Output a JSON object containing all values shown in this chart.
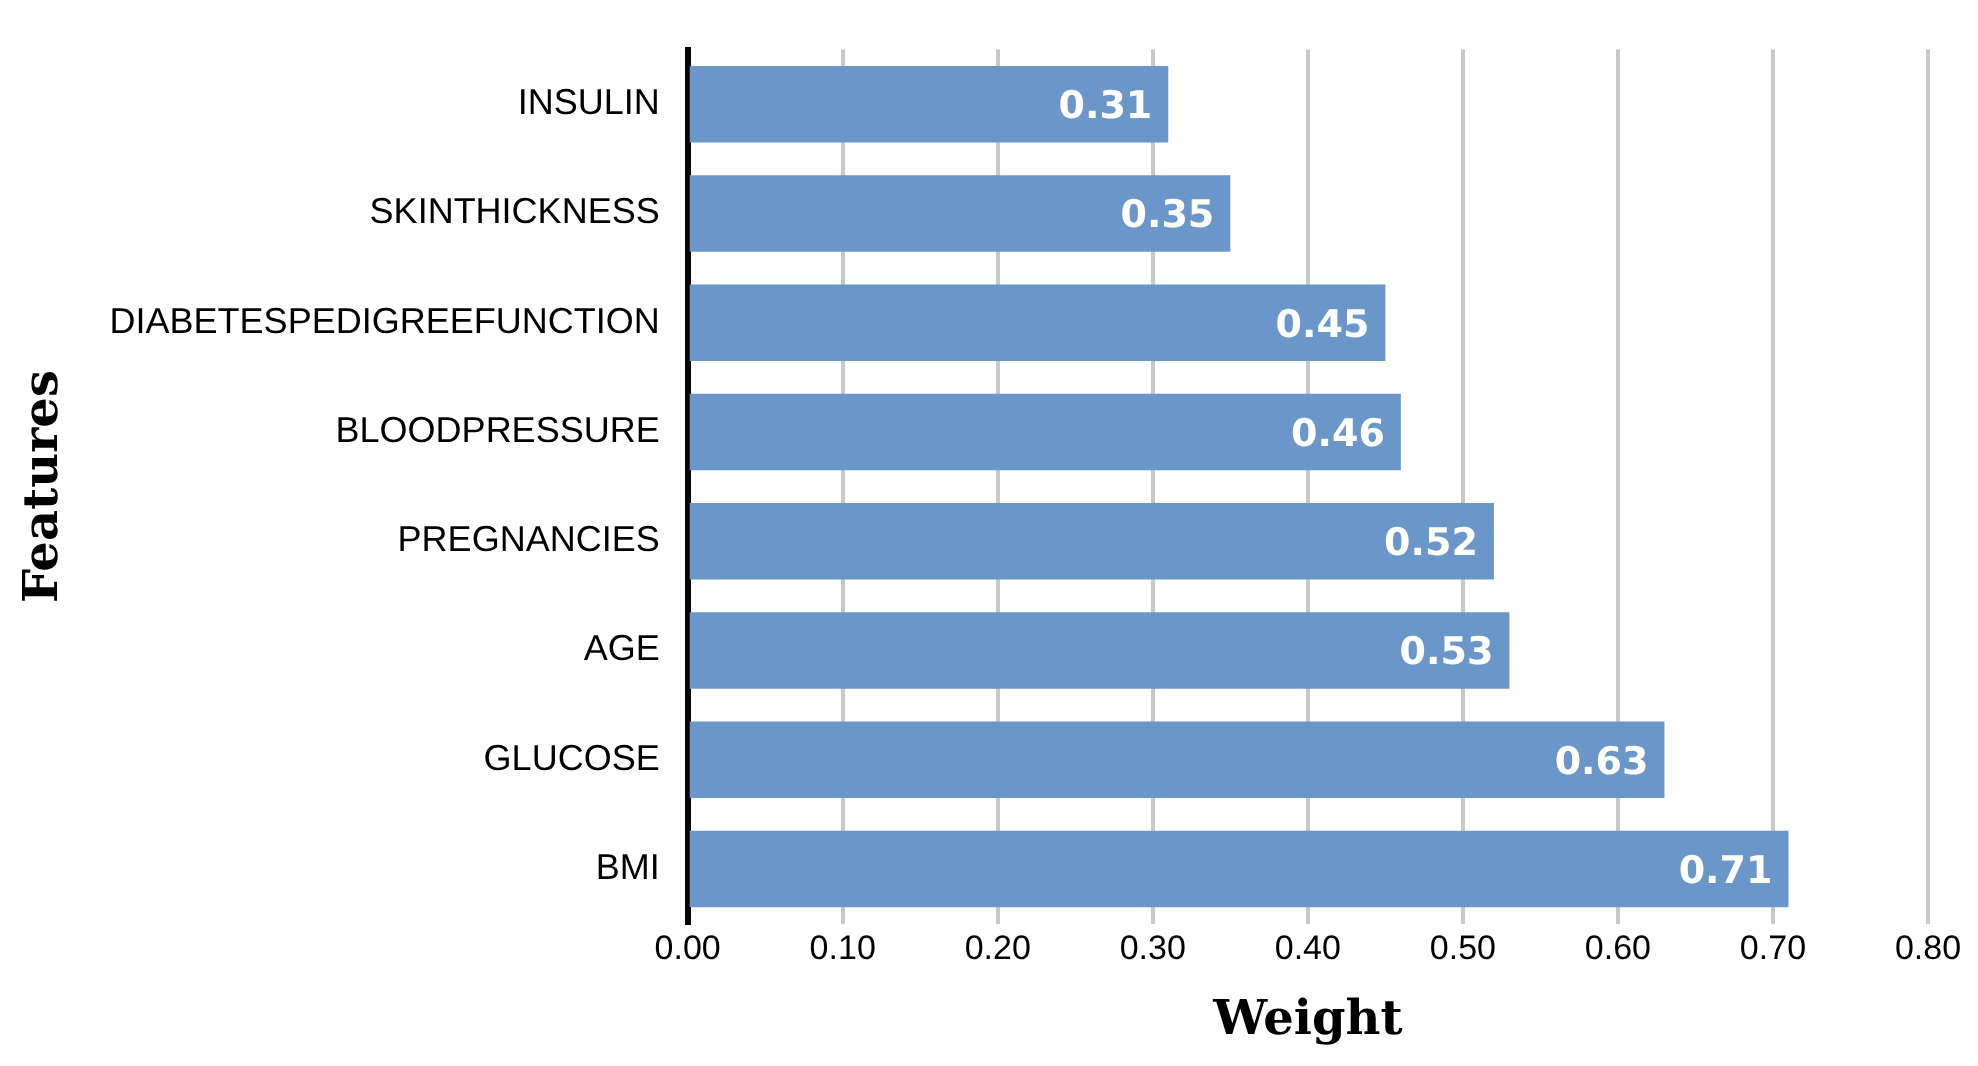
{
  "chart_data": {
    "type": "bar",
    "orientation": "horizontal",
    "xlabel": "Weight",
    "ylabel": "Features",
    "categories": [
      "INSULIN",
      "SKINTHICKNESS",
      "DIABETESPEDIGREEFUNCTION",
      "BLOODPRESSURE",
      "PREGNANCIES",
      "AGE",
      "GLUCOSE",
      "BMI"
    ],
    "values": [
      0.31,
      0.35,
      0.45,
      0.46,
      0.52,
      0.53,
      0.63,
      0.71
    ],
    "color": "#6b96c9",
    "xlim": [
      0,
      0.8
    ],
    "xticks": [
      {
        "value": 0,
        "label": "0.00"
      },
      {
        "value": 0.1,
        "label": "0.10"
      },
      {
        "value": 0.2,
        "label": "0.20"
      },
      {
        "value": 0.3,
        "label": "0.30"
      },
      {
        "value": 0.4,
        "label": "0.40"
      },
      {
        "value": 0.5,
        "label": "0.50"
      },
      {
        "value": 0.6,
        "label": "0.60"
      },
      {
        "value": 0.7,
        "label": "0.70"
      },
      {
        "value": 0.8,
        "label": "0.80"
      }
    ],
    "grid": "x",
    "data_labels": true
  }
}
